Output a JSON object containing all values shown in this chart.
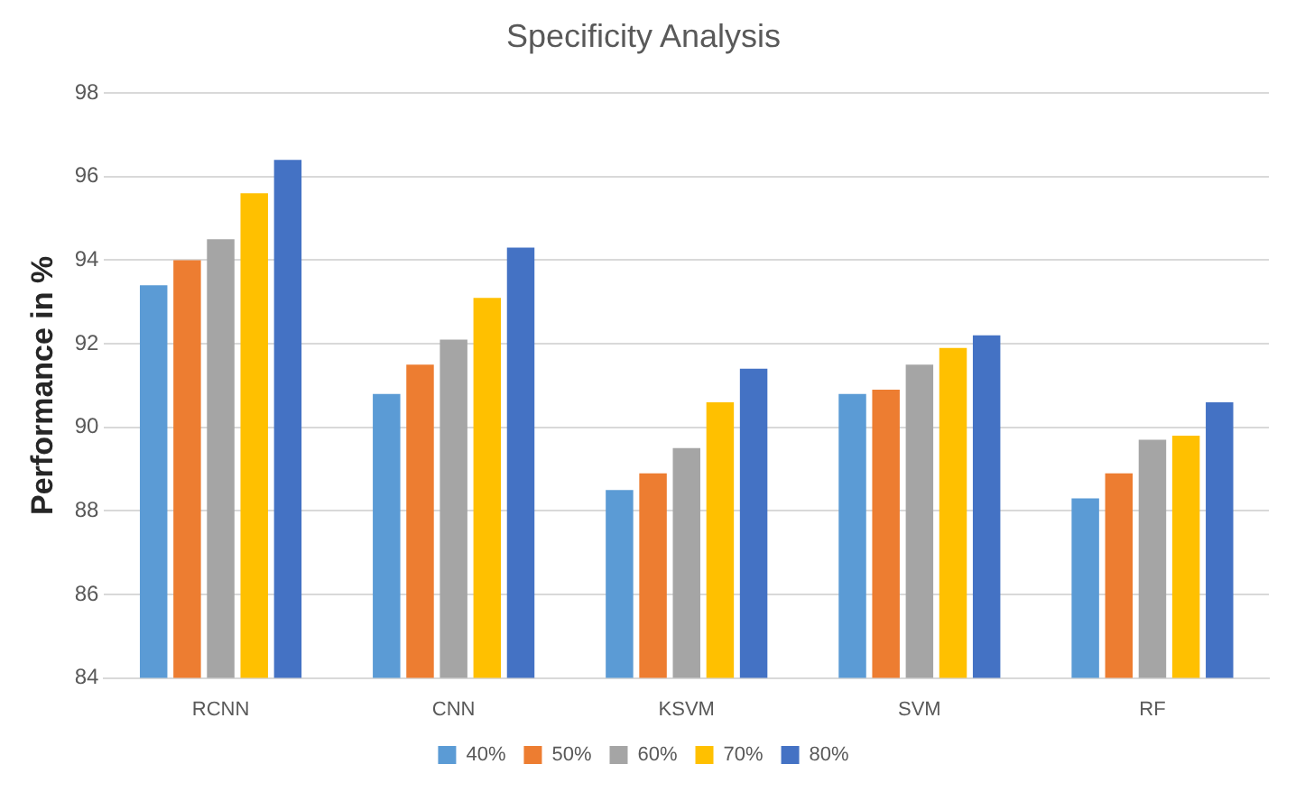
{
  "chart_data": {
    "type": "bar",
    "title": "Specificity Analysis",
    "ylabel": "Performance in %",
    "categories": [
      "RCNN",
      "CNN",
      "KSVM",
      "SVM",
      "RF"
    ],
    "series": [
      {
        "name": "40%",
        "color": "#5b9bd5",
        "values": [
          93.4,
          90.8,
          88.5,
          90.8,
          88.3
        ]
      },
      {
        "name": "50%",
        "color": "#ed7d31",
        "values": [
          94.0,
          91.5,
          88.9,
          90.9,
          88.9
        ]
      },
      {
        "name": "60%",
        "color": "#a5a5a5",
        "values": [
          94.5,
          92.1,
          89.5,
          91.5,
          89.7
        ]
      },
      {
        "name": "70%",
        "color": "#ffc000",
        "values": [
          95.6,
          93.1,
          90.6,
          91.9,
          89.8
        ]
      },
      {
        "name": "80%",
        "color": "#4472c4",
        "values": [
          96.4,
          94.3,
          91.4,
          92.2,
          90.6
        ]
      }
    ],
    "ylim": [
      84,
      98
    ],
    "yticks": [
      84,
      86,
      88,
      90,
      92,
      94,
      96,
      98
    ],
    "grid": "y",
    "legend": "bottom"
  }
}
